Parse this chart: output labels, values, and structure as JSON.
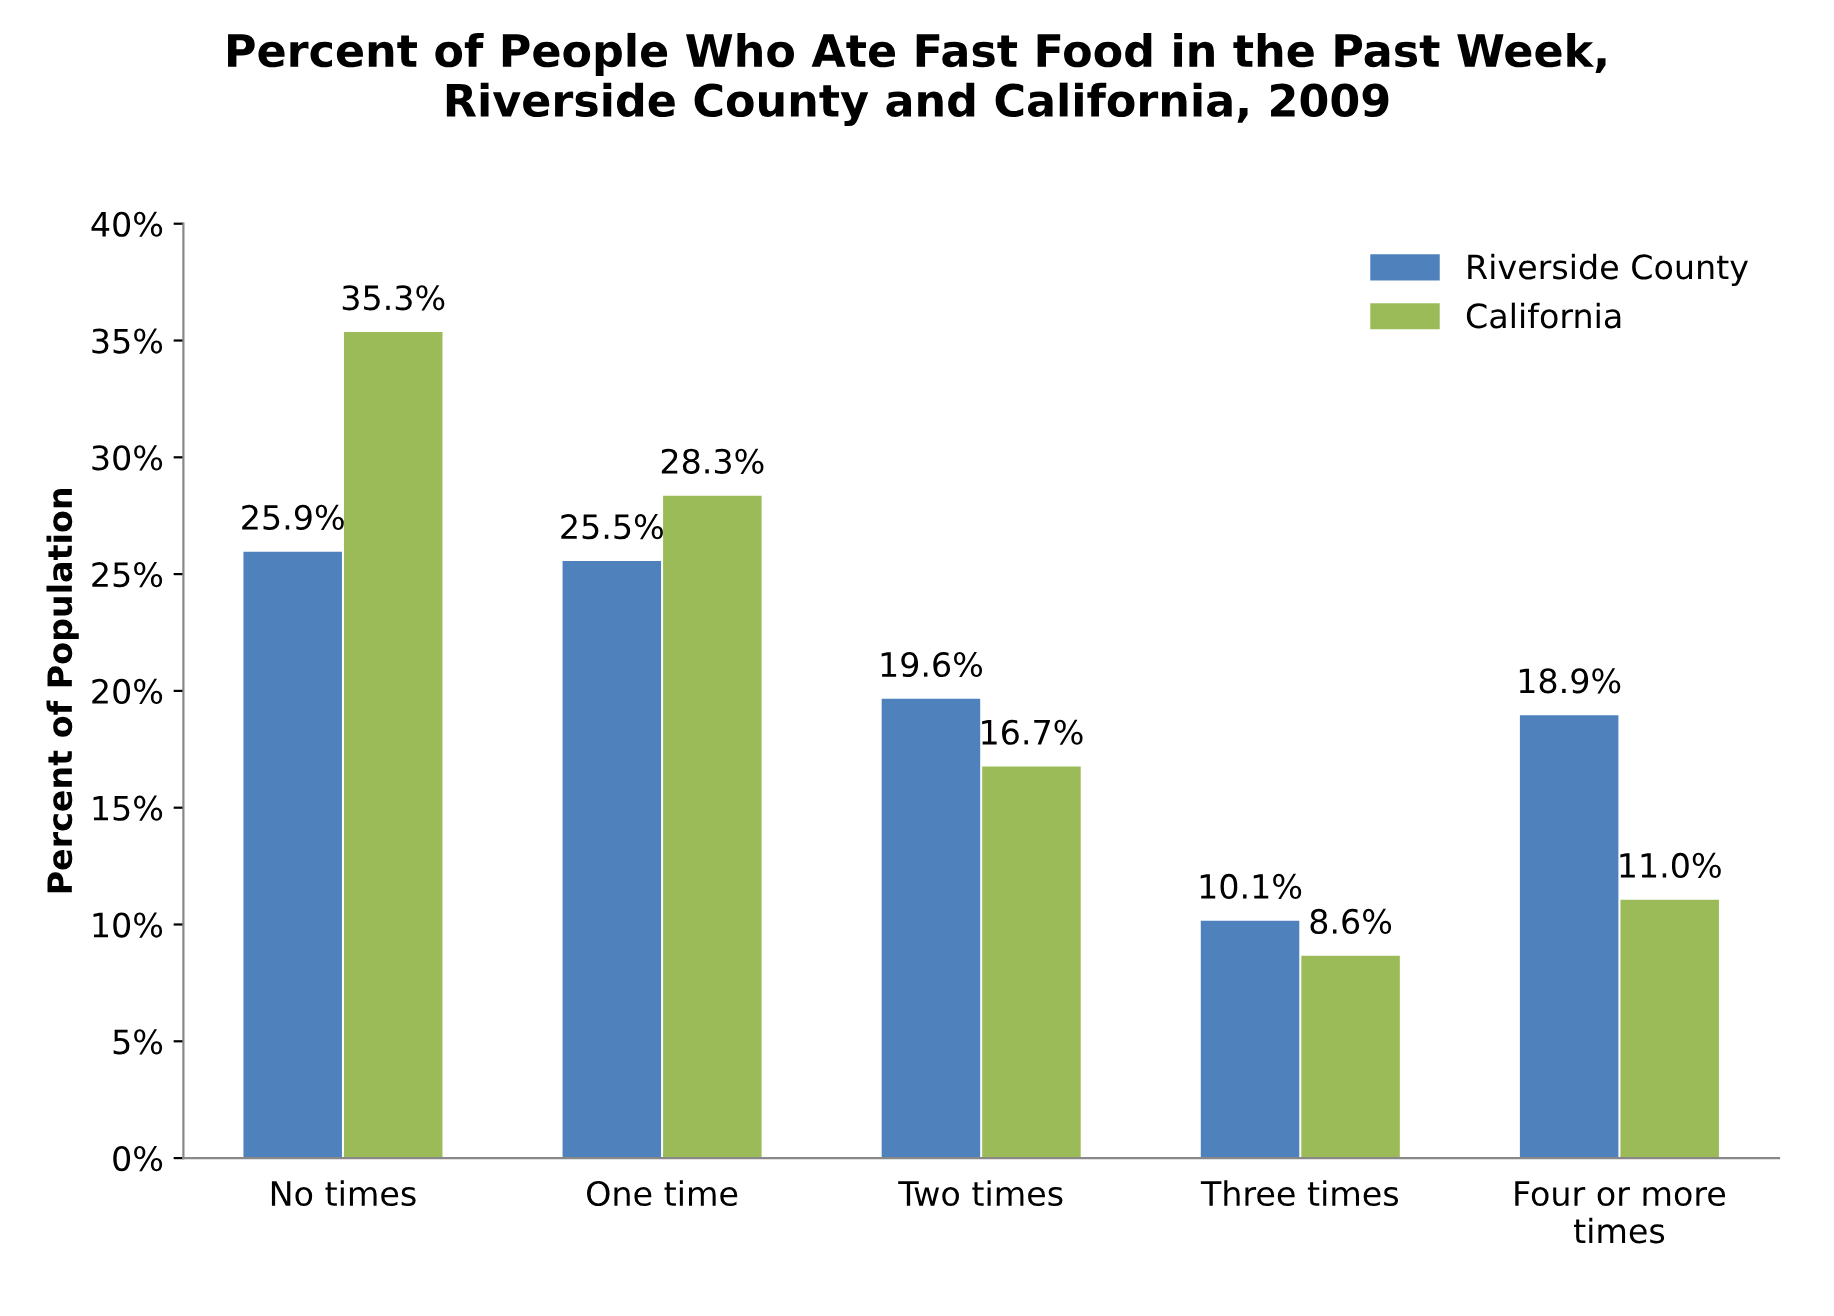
{
  "chart_data": {
    "type": "bar",
    "title": "Percent of People Who Ate Fast Food in the Past Week,\nRiverside County and California, 2009",
    "ylabel": "Percent of Population",
    "categories": [
      "No times",
      "One time",
      "Two times",
      "Three times",
      "Four or more\ntimes"
    ],
    "series": [
      {
        "name": "Riverside County",
        "color": "#4f81bd",
        "values": [
          25.9,
          25.5,
          19.6,
          10.1,
          18.9
        ],
        "value_labels": [
          "25.9%",
          "25.5%",
          "19.6%",
          "10.1%",
          "18.9%"
        ]
      },
      {
        "name": "California",
        "color": "#9bbb59",
        "values": [
          35.3,
          28.3,
          16.7,
          8.6,
          11.0
        ],
        "value_labels": [
          "35.3%",
          "28.3%",
          "16.7%",
          "8.6%",
          "11.0%"
        ]
      }
    ],
    "ylim": [
      0,
      40
    ],
    "yticks": [
      {
        "value": 0,
        "label": "0%"
      },
      {
        "value": 5,
        "label": "5%"
      },
      {
        "value": 10,
        "label": "10%"
      },
      {
        "value": 15,
        "label": "15%"
      },
      {
        "value": 20,
        "label": "20%"
      },
      {
        "value": 25,
        "label": "25%"
      },
      {
        "value": 30,
        "label": "30%"
      },
      {
        "value": 35,
        "label": "35%"
      },
      {
        "value": 40,
        "label": "40%"
      }
    ],
    "legend": "top right",
    "grid": false
  }
}
